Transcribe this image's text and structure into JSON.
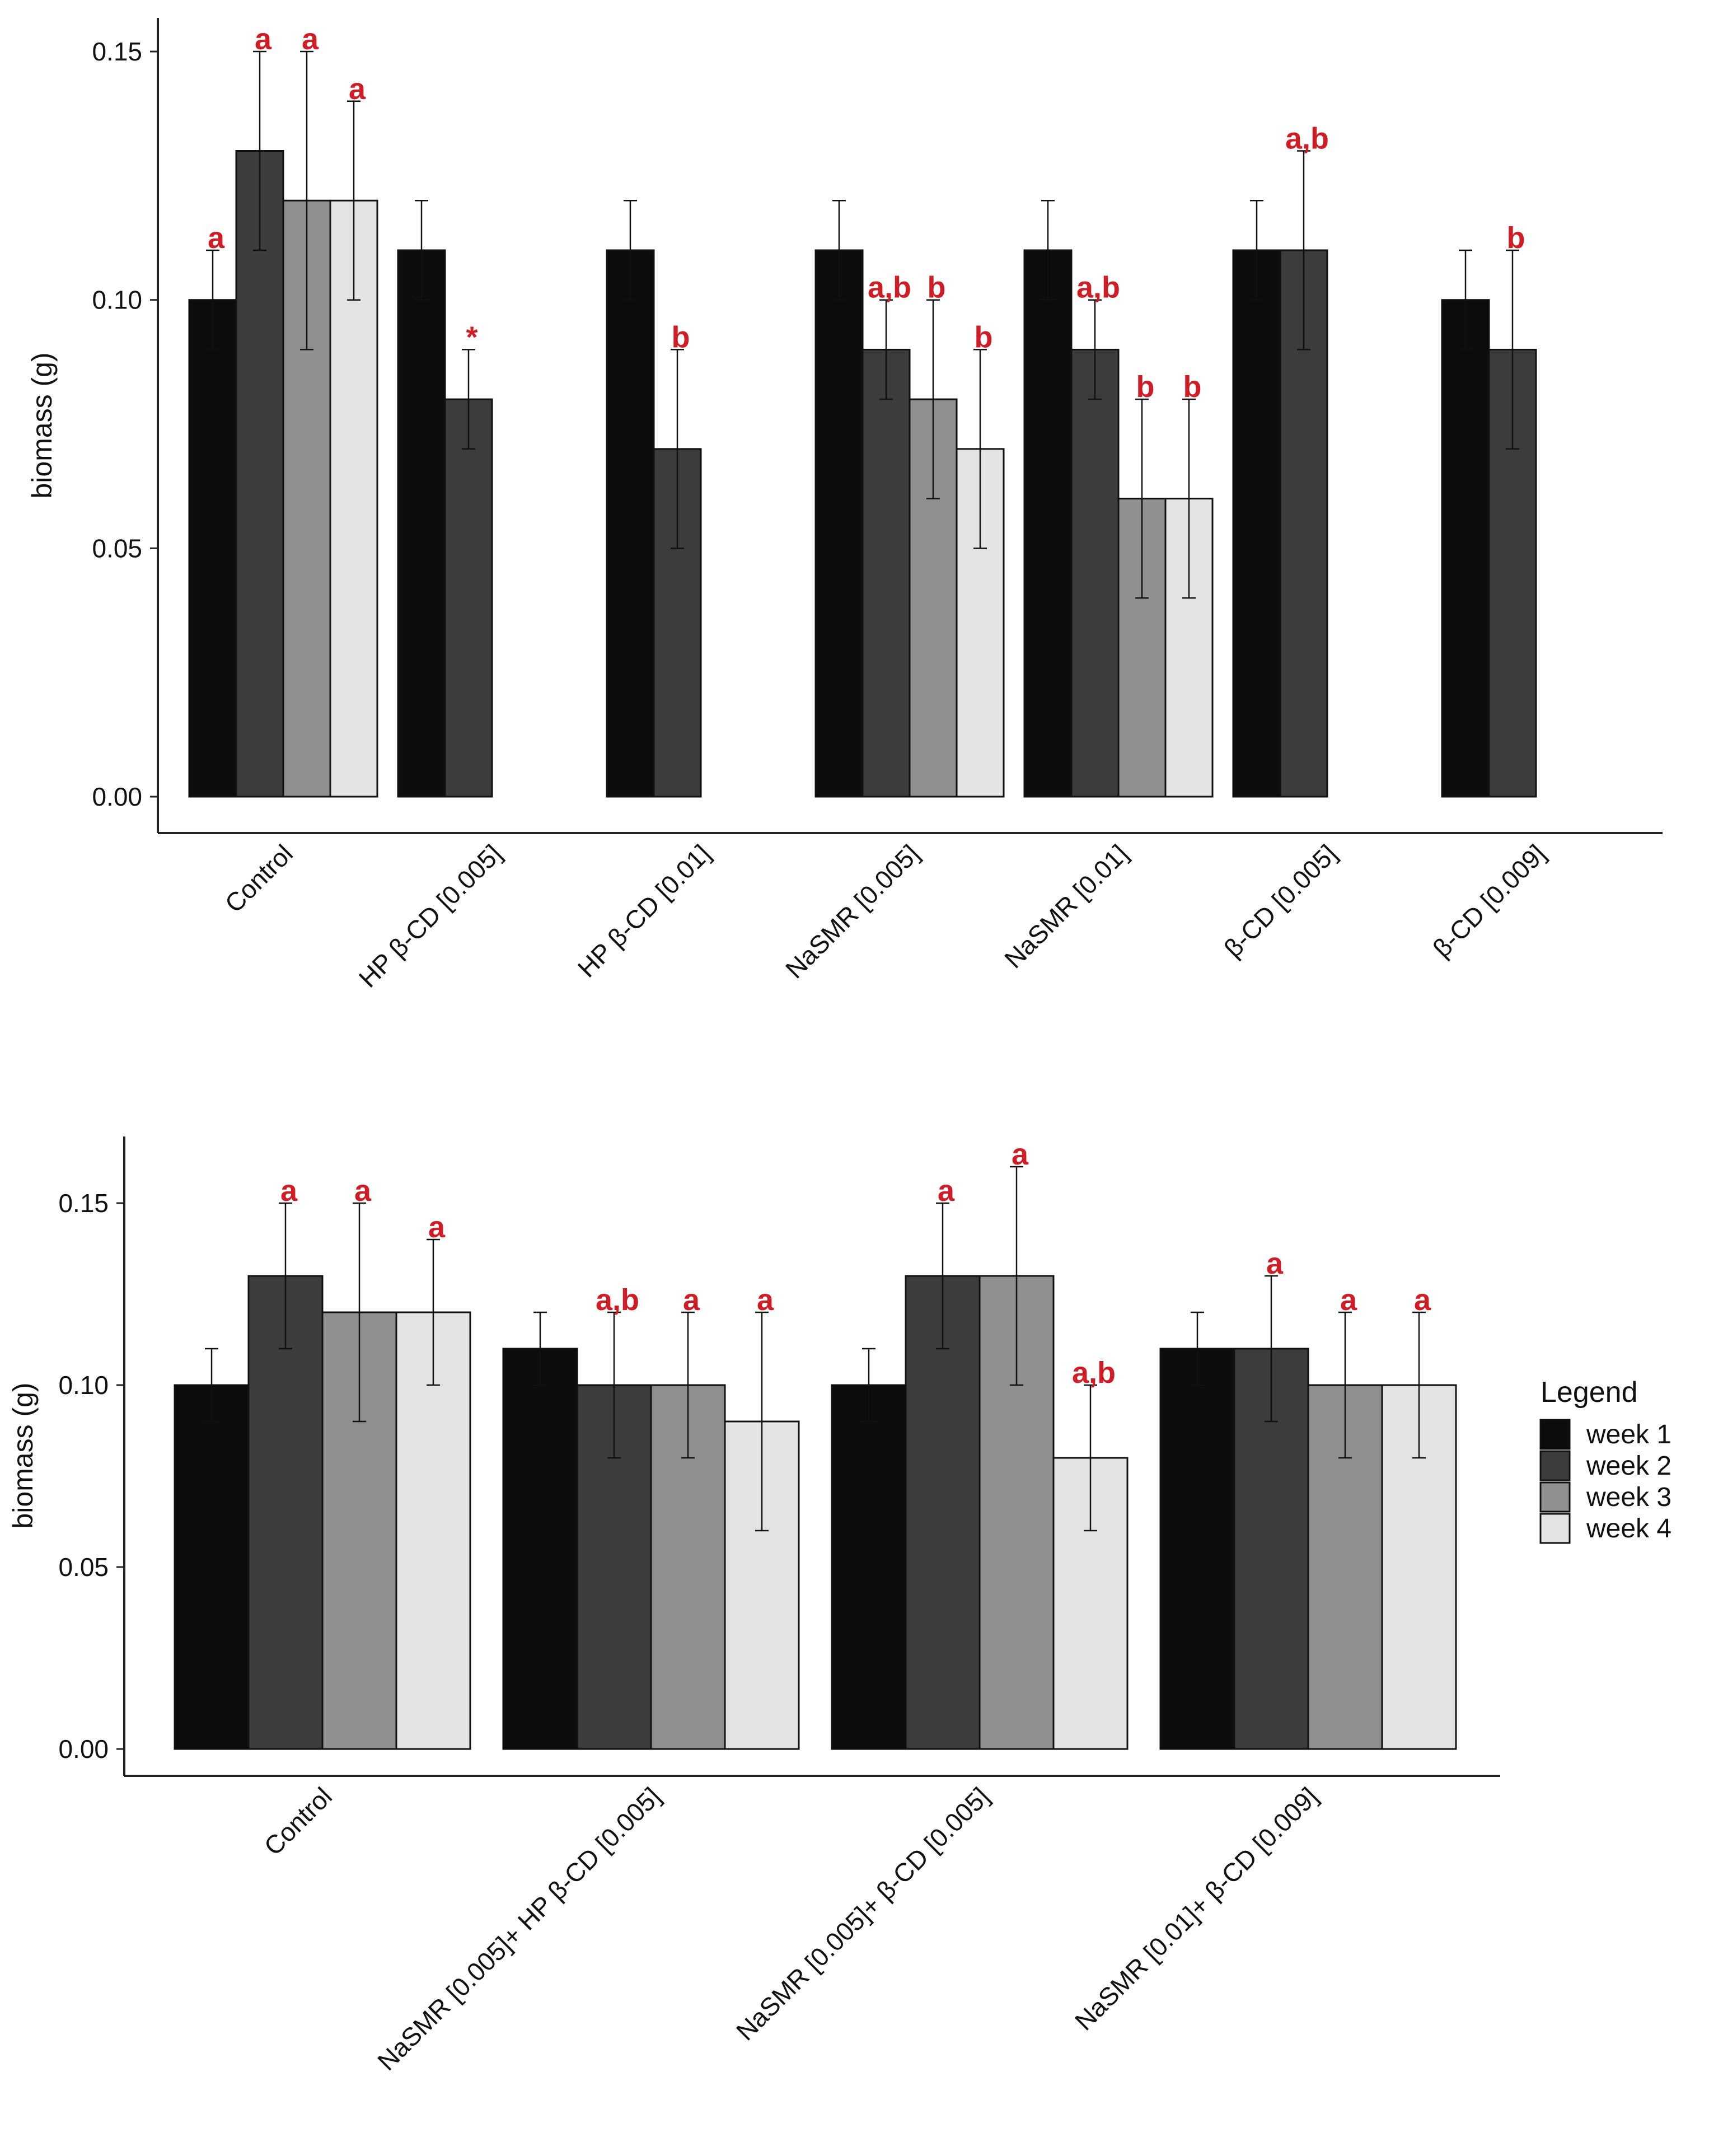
{
  "colors": {
    "week1": "#0d0d0d",
    "week2": "#3c3c3c",
    "week3": "#8f8f8f",
    "week4": "#e3e3e3",
    "sig": "#d01c24"
  },
  "legend": {
    "title": "Legend",
    "entries": [
      "week 1",
      "week 2",
      "week 3",
      "week 4"
    ]
  },
  "chart_data": [
    {
      "type": "bar",
      "title": "",
      "ylabel": "biomass (g)",
      "xlabel": "",
      "ylim": [
        0,
        0.16
      ],
      "yticks": [
        "0.00",
        "0.05",
        "0.10",
        "0.15"
      ],
      "categories": [
        "Control",
        "HP β-CD [0.005]",
        "HP β-CD [0.01]",
        "NaSMR [0.005]",
        "NaSMR [0.01]",
        "β-CD [0.005]",
        "β-CD [0.009]"
      ],
      "series": [
        {
          "name": "week 1",
          "values": [
            0.1,
            0.11,
            0.11,
            0.11,
            0.11,
            0.11,
            0.1
          ],
          "err": [
            0.01,
            0.01,
            0.01,
            0.01,
            0.01,
            0.01,
            0.01
          ]
        },
        {
          "name": "week 2",
          "values": [
            0.13,
            0.08,
            0.07,
            0.09,
            0.09,
            0.11,
            0.09
          ],
          "err": [
            0.02,
            0.01,
            0.02,
            0.01,
            0.01,
            0.02,
            0.02
          ]
        },
        {
          "name": "week 3",
          "values": [
            0.12,
            0,
            0,
            0.08,
            0.06,
            0,
            0
          ],
          "err": [
            0.03,
            0,
            0,
            0.02,
            0.02,
            0,
            0
          ]
        },
        {
          "name": "week 4",
          "values": [
            0.12,
            0,
            0,
            0.07,
            0.06,
            0,
            0
          ],
          "err": [
            0.02,
            0,
            0,
            0.02,
            0.02,
            0,
            0
          ]
        }
      ],
      "annotations": [
        [
          "a",
          "a",
          "a",
          "a"
        ],
        [
          "",
          "*",
          "",
          ""
        ],
        [
          "",
          "b",
          "",
          ""
        ],
        [
          "",
          "a,b",
          "b",
          "b"
        ],
        [
          "",
          "a,b",
          "b",
          "b"
        ],
        [
          "",
          "a,b",
          "",
          ""
        ],
        [
          "",
          "b",
          "",
          ""
        ]
      ]
    },
    {
      "type": "bar",
      "title": "",
      "ylabel": "biomass (g)",
      "xlabel": "",
      "ylim": [
        0,
        0.168
      ],
      "yticks": [
        "0.00",
        "0.05",
        "0.10",
        "0.15"
      ],
      "categories": [
        "Control",
        "NaSMR [0.005]+ HP β-CD [0.005]",
        "NaSMR [0.005]+ β-CD [0.005]",
        "NaSMR [0.01]+ β-CD [0.009]"
      ],
      "series": [
        {
          "name": "week 1",
          "values": [
            0.1,
            0.11,
            0.1,
            0.11
          ],
          "err": [
            0.01,
            0.01,
            0.01,
            0.01
          ]
        },
        {
          "name": "week 2",
          "values": [
            0.13,
            0.1,
            0.13,
            0.11
          ],
          "err": [
            0.02,
            0.02,
            0.02,
            0.02
          ]
        },
        {
          "name": "week 3",
          "values": [
            0.12,
            0.1,
            0.13,
            0.1
          ],
          "err": [
            0.03,
            0.02,
            0.03,
            0.02
          ]
        },
        {
          "name": "week 4",
          "values": [
            0.12,
            0.09,
            0.08,
            0.1
          ],
          "err": [
            0.02,
            0.03,
            0.02,
            0.02
          ]
        }
      ],
      "annotations": [
        [
          "",
          "a",
          "a",
          "a"
        ],
        [
          "",
          "a,b",
          "a",
          "a"
        ],
        [
          "",
          "a",
          "a",
          "a,b"
        ],
        [
          "",
          "a",
          "a",
          "a"
        ]
      ]
    }
  ]
}
